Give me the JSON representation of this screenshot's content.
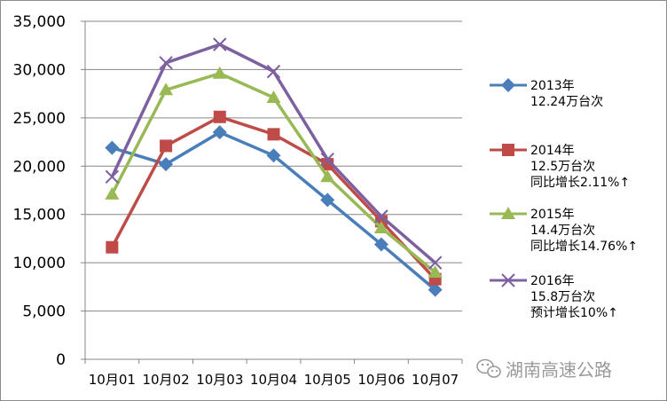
{
  "chart_data": {
    "type": "line",
    "categories": [
      "10月01",
      "10月02",
      "10月03",
      "10月04",
      "10月05",
      "10月06",
      "10月07"
    ],
    "ylim": [
      0,
      35000
    ],
    "yticks": [
      "0",
      "5,000",
      "10,000",
      "15,000",
      "20,000",
      "25,000",
      "30,000",
      "35,000"
    ],
    "ytick_values": [
      0,
      5000,
      10000,
      15000,
      20000,
      25000,
      30000,
      35000
    ],
    "grid": true,
    "legend_position": "right",
    "series": [
      {
        "name": "2013年",
        "note_lines": [
          "12.24万台次"
        ],
        "color": "#4a7ebb",
        "marker": "diamond",
        "values": [
          21900,
          20200,
          23500,
          21100,
          16500,
          11900,
          7200
        ]
      },
      {
        "name": "2014年",
        "note_lines": [
          "12.5万台次",
          "同比增长2.11%↑"
        ],
        "color": "#be4b48",
        "marker": "square",
        "values": [
          11600,
          22100,
          25100,
          23300,
          20200,
          14300,
          8300
        ]
      },
      {
        "name": "2015年",
        "note_lines": [
          "14.4万台次",
          "同比增长14.76%↑"
        ],
        "color": "#98b954",
        "marker": "triangle",
        "values": [
          17100,
          27900,
          29600,
          27100,
          18900,
          13600,
          9000
        ]
      },
      {
        "name": "2016年",
        "note_lines": [
          "15.8万台次",
          "预计增长10%↑"
        ],
        "color": "#7d60a0",
        "marker": "x",
        "values": [
          18900,
          30700,
          32600,
          29800,
          20700,
          14800,
          10000
        ]
      }
    ]
  },
  "watermark": {
    "text": "湖南高速公路",
    "icon": "wechat-icon"
  }
}
